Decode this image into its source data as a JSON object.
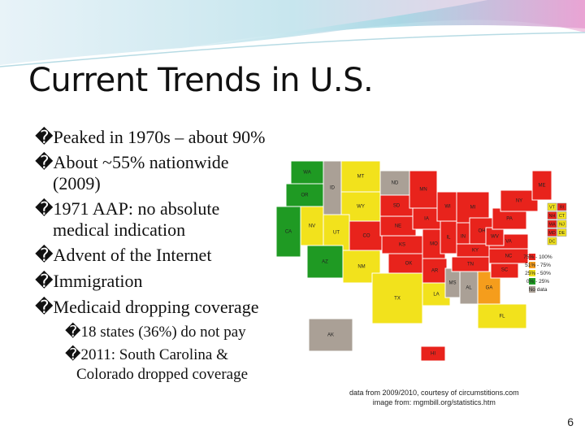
{
  "slide": {
    "title": "Current Trends in U.S.",
    "bullets": [
      {
        "lines": [
          "�Peaked in 1970s – about 90%"
        ]
      },
      {
        "lines": [
          "�About ~55% nationwide",
          "(2009)"
        ]
      },
      {
        "lines": [
          "�1971 AAP: no absolute",
          "medical indication"
        ]
      },
      {
        "lines": [
          "�Advent of the Internet"
        ]
      },
      {
        "lines": [
          "�Immigration"
        ]
      },
      {
        "lines": [
          "�Medicaid dropping coverage"
        ]
      }
    ],
    "sub_bullets": [
      {
        "lines": [
          "�18 states (36%) do not pay"
        ]
      },
      {
        "lines": [
          "�2011: South Carolina &",
          "Colorado dropped coverage"
        ]
      }
    ],
    "map": {
      "states": [
        {
          "label": "WA",
          "color": "#1f9a23"
        },
        {
          "label": "OR",
          "color": "#1f9a23"
        },
        {
          "label": "CA",
          "color": "#1f9a23"
        },
        {
          "label": "NV",
          "color": "#f2e21c"
        },
        {
          "label": "ID",
          "color": "#aaa096"
        },
        {
          "label": "MT",
          "color": "#f2e21c"
        },
        {
          "label": "WY",
          "color": "#f2e21c"
        },
        {
          "label": "UT",
          "color": "#f2e21c"
        },
        {
          "label": "AZ",
          "color": "#1f9a23"
        },
        {
          "label": "CO",
          "color": "#e8231c"
        },
        {
          "label": "NM",
          "color": "#f2e21c"
        },
        {
          "label": "ND",
          "color": "#aaa096"
        },
        {
          "label": "SD",
          "color": "#e8231c"
        },
        {
          "label": "NE",
          "color": "#e8231c"
        },
        {
          "label": "KS",
          "color": "#e8231c"
        },
        {
          "label": "OK",
          "color": "#e8231c"
        },
        {
          "label": "TX",
          "color": "#f2e21c"
        },
        {
          "label": "MN",
          "color": "#e8231c"
        },
        {
          "label": "IA",
          "color": "#e8231c"
        },
        {
          "label": "MO",
          "color": "#e8231c"
        },
        {
          "label": "AR",
          "color": "#e8231c"
        },
        {
          "label": "LA",
          "color": "#f2e21c"
        },
        {
          "label": "WI",
          "color": "#e8231c"
        },
        {
          "label": "IL",
          "color": "#e8231c"
        },
        {
          "label": "MS",
          "color": "#aaa096"
        },
        {
          "label": "MI",
          "color": "#e8231c"
        },
        {
          "label": "IN",
          "color": "#e8231c"
        },
        {
          "label": "KY",
          "color": "#e8231c"
        },
        {
          "label": "TN",
          "color": "#e8231c"
        },
        {
          "label": "AL",
          "color": "#aaa096"
        },
        {
          "label": "OH",
          "color": "#e8231c"
        },
        {
          "label": "GA",
          "color": "#f59d1c"
        },
        {
          "label": "FL",
          "color": "#f2e21c"
        },
        {
          "label": "SC",
          "color": "#e8231c"
        },
        {
          "label": "NC",
          "color": "#e8231c"
        },
        {
          "label": "VA",
          "color": "#e8231c"
        },
        {
          "label": "WV",
          "color": "#e8231c"
        },
        {
          "label": "PA",
          "color": "#e8231c"
        },
        {
          "label": "NY",
          "color": "#e8231c"
        },
        {
          "label": "ME",
          "color": "#e8231c"
        },
        {
          "label": "AK",
          "color": "#aaa096"
        },
        {
          "label": "HI",
          "color": "#e8231c"
        }
      ],
      "small_states": [
        {
          "label": "VT",
          "color": "#f2e21c"
        },
        {
          "label": "RI",
          "color": "#e8231c"
        },
        {
          "label": "NH",
          "color": "#e8231c"
        },
        {
          "label": "CT",
          "color": "#f2e21c"
        },
        {
          "label": "MA",
          "color": "#e8231c"
        },
        {
          "label": "NJ",
          "color": "#f2e21c"
        },
        {
          "label": "MD",
          "color": "#e8231c"
        },
        {
          "label": "DE",
          "color": "#f2e21c"
        },
        {
          "label": "DC",
          "color": "#f2e21c"
        }
      ],
      "legend": [
        {
          "label": "75% - 100%",
          "color": "#e8231c"
        },
        {
          "label": "51% - 75%",
          "color": "#f59d1c"
        },
        {
          "label": "25% - 50%",
          "color": "#f2e21c"
        },
        {
          "label": "0% - 25%",
          "color": "#1f9a23"
        },
        {
          "label": "No data",
          "color": "#aaa096"
        }
      ]
    },
    "source_lines": [
      "data from 2009/2010, courtesy of circumstitions.com",
      "image from: mgmbill.org/statistics.htm"
    ],
    "page_number": "6"
  }
}
